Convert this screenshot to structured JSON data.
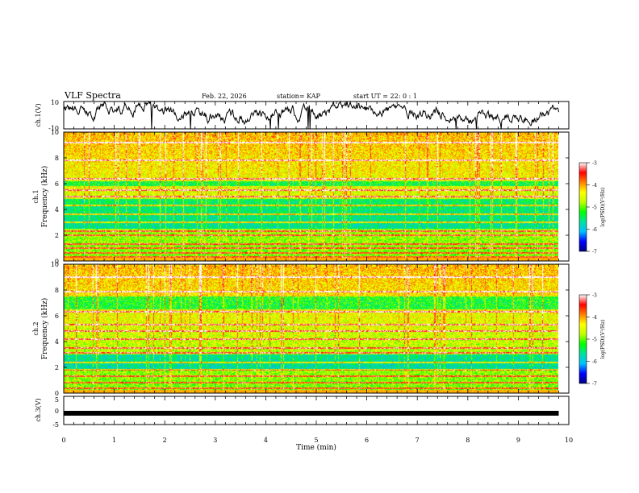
{
  "header": {
    "title": "VLF Spectra",
    "date": "Feb. 22, 2026",
    "station": "station= KAP",
    "start": "start  UT =   22: 0  : 1"
  },
  "chart_data": [
    {
      "type": "line",
      "name": "ch1-waveform",
      "ylabel": "ch.1(V)",
      "ylim": [
        -10,
        10
      ],
      "yticks": [
        "10",
        "-10"
      ],
      "xlim": [
        0,
        10
      ]
    },
    {
      "type": "heatmap",
      "name": "ch1-spectrogram",
      "ylabel_line1": "ch.1",
      "ylabel_line2": "Frequency  (kHz)",
      "ylim": [
        0,
        10
      ],
      "yticks": [
        "0",
        "2",
        "4",
        "6",
        "8",
        "10"
      ],
      "xlim": [
        0,
        9.8
      ],
      "colorbar": {
        "label": "log(PSD)(V²/Hz)",
        "ticks": [
          "-3",
          "-4",
          "-5",
          "-6",
          "-7"
        ],
        "range": [
          -7,
          -3
        ],
        "colors": [
          "#000080",
          "#0000ff",
          "#00c0ff",
          "#00e0a0",
          "#00ff00",
          "#c0ff00",
          "#ffff00",
          "#ff8000",
          "#ff0000",
          "#ffffff"
        ]
      },
      "bands_khz": [
        0.3,
        0.6,
        1.0,
        1.3,
        2.0,
        2.3,
        3.0,
        3.6,
        4.3,
        5.0,
        5.5,
        6.4,
        7.8,
        9.2
      ],
      "quiet_bands_khz": [
        [
          2.5,
          4.8
        ],
        [
          5.8,
          6.2
        ]
      ]
    },
    {
      "type": "heatmap",
      "name": "ch2-spectrogram",
      "ylabel_line1": "ch.2",
      "ylabel_line2": "Frequency  (kHz)",
      "ylim": [
        0,
        10
      ],
      "yticks": [
        "0",
        "2",
        "4",
        "6",
        "8",
        "10"
      ],
      "xlim": [
        0,
        9.8
      ],
      "colorbar": {
        "label": "log(PSD)(V²/Hz)",
        "ticks": [
          "-3",
          "-4",
          "-5",
          "-6",
          "-7"
        ],
        "range": [
          -7,
          -3
        ],
        "colors": [
          "#000080",
          "#0000ff",
          "#00c0ff",
          "#00e0a0",
          "#00ff00",
          "#c0ff00",
          "#ffff00",
          "#ff8000",
          "#ff0000",
          "#ffffff"
        ]
      },
      "bands_khz": [
        0.4,
        0.8,
        1.3,
        1.8,
        2.4,
        3.1,
        3.5,
        4.2,
        4.8,
        5.3,
        6.3,
        7.9,
        9.0
      ],
      "quiet_bands_khz": [
        [
          1.8,
          3.0
        ],
        [
          6.5,
          7.5
        ]
      ]
    },
    {
      "type": "line",
      "name": "ch3-waveform",
      "ylabel": "ch.3(V)",
      "ylim": [
        -5,
        5
      ],
      "yticks": [
        "5",
        "0",
        "-5"
      ],
      "xlim": [
        0,
        9.8
      ],
      "value": -1.0
    }
  ],
  "xaxis": {
    "label": "Time  (min)",
    "ticks": [
      "0",
      "1",
      "2",
      "3",
      "4",
      "5",
      "6",
      "7",
      "8",
      "9",
      "10"
    ]
  }
}
